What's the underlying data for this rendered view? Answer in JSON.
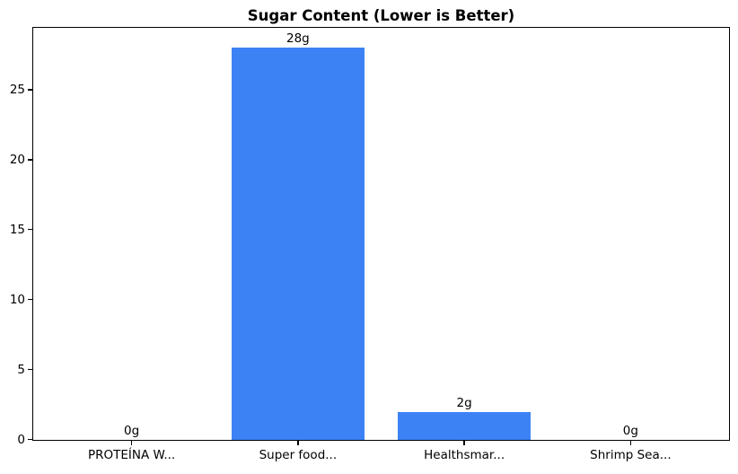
{
  "colors": {
    "background": "#ffffff",
    "axis": "#000000",
    "bar": "#3d82f5",
    "text": "#000000"
  },
  "chart_data": {
    "type": "bar",
    "title": "Sugar Content (Lower is Better)",
    "xlabel": "",
    "ylabel": "",
    "categories": [
      "PROTEÍNA W...",
      "Super food...",
      "Healthsmar...",
      "Shrimp Sea..."
    ],
    "values": [
      0,
      28,
      2,
      0
    ],
    "value_labels": [
      "0g",
      "28g",
      "2g",
      "0g"
    ],
    "value_unit": "g",
    "yticks": [
      0,
      5,
      10,
      15,
      20,
      25
    ],
    "ylim": [
      0,
      29.4
    ],
    "bar_width_fraction": 0.8,
    "grid": false,
    "legend": null,
    "bar_color": "#3d82f5"
  }
}
